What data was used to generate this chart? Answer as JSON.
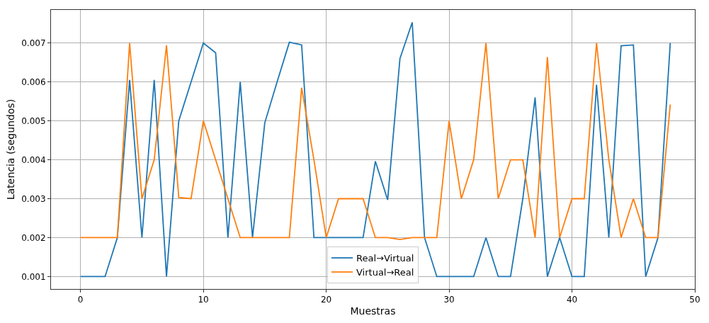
{
  "chart_data": {
    "type": "line",
    "xlabel": "Muestras",
    "ylabel": "Latencia (segundos)",
    "x": [
      0,
      1,
      2,
      3,
      4,
      5,
      6,
      7,
      8,
      9,
      10,
      11,
      12,
      13,
      14,
      15,
      16,
      17,
      18,
      19,
      20,
      21,
      22,
      23,
      24,
      25,
      26,
      27,
      28,
      29,
      30,
      31,
      32,
      33,
      34,
      35,
      36,
      37,
      38,
      39,
      40,
      41,
      42,
      43,
      44,
      45,
      46,
      47,
      48
    ],
    "series": [
      {
        "name": "Real→Virtual",
        "color": "#1f77b4",
        "values": [
          0.001,
          0.001,
          0.001,
          0.002,
          0.00605,
          0.002,
          0.00605,
          0.001,
          0.005,
          0.006,
          0.007,
          0.00675,
          0.002,
          0.006,
          0.002,
          0.00495,
          0.006,
          0.00702,
          0.00695,
          0.002,
          0.002,
          0.002,
          0.002,
          0.002,
          0.00396,
          0.00297,
          0.0066,
          0.00753,
          0.002,
          0.001,
          0.001,
          0.001,
          0.001,
          0.002,
          0.001,
          0.001,
          0.003,
          0.0056,
          0.001,
          0.002,
          0.001,
          0.001,
          0.00593,
          0.002,
          0.00693,
          0.00695,
          0.001,
          0.002,
          0.007
        ]
      },
      {
        "name": "Virtual→Real",
        "color": "#ff7f0e",
        "values": [
          0.002,
          0.002,
          0.002,
          0.002,
          0.007,
          0.003,
          0.004,
          0.00694,
          0.00303,
          0.003,
          0.005,
          0.004,
          0.003,
          0.002,
          0.002,
          0.002,
          0.002,
          0.002,
          0.00585,
          0.004,
          0.002,
          0.003,
          0.003,
          0.003,
          0.002,
          0.002,
          0.00195,
          0.002,
          0.002,
          0.002,
          0.005,
          0.003,
          0.004,
          0.007,
          0.003,
          0.004,
          0.004,
          0.002,
          0.00664,
          0.002,
          0.003,
          0.003,
          0.007,
          0.004,
          0.002,
          0.003,
          0.002,
          0.002,
          0.00542
        ]
      }
    ],
    "xlim": [
      -2.4,
      50
    ],
    "xticks": [
      0,
      10,
      20,
      30,
      40,
      50
    ],
    "ylim": [
      0.00068,
      0.00785
    ],
    "yticks": [
      {
        "value": 0.001,
        "label": "0.001"
      },
      {
        "value": 0.002,
        "label": "0.002"
      },
      {
        "value": 0.003,
        "label": "0.003"
      },
      {
        "value": 0.004,
        "label": "0.004"
      },
      {
        "value": 0.005,
        "label": "0.005"
      },
      {
        "value": 0.006,
        "label": "0.006"
      },
      {
        "value": 0.007,
        "label": "0.007"
      }
    ],
    "grid": true,
    "legend": "bottom",
    "marker": "none",
    "line_style": "solid"
  }
}
